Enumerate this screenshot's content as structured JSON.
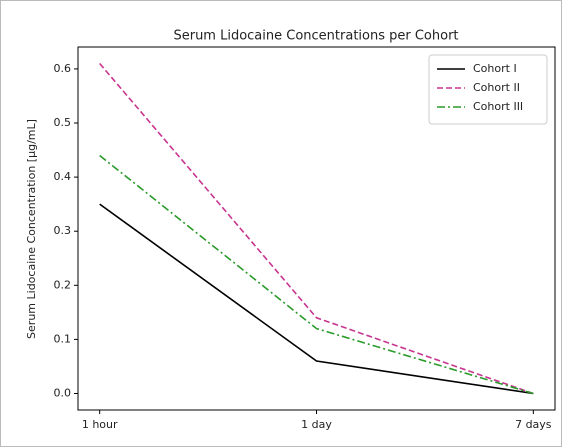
{
  "chart_data": {
    "type": "line",
    "title": "Serum Lidocaine Concentrations per Cohort",
    "y_label": "Serum Lidocaine Concentration [μg/mL]",
    "categories": [
      "1 hour",
      "1 day",
      "7 days"
    ],
    "series": [
      {
        "name": "Cohort I",
        "color": "#000000",
        "linestyle": "solid",
        "values": [
          0.35,
          0.06,
          0.0
        ]
      },
      {
        "name": "Cohort II",
        "color": "#c8358f",
        "linestyle": "dashed",
        "values": [
          0.61,
          0.14,
          0.0
        ]
      },
      {
        "name": "Cohort III",
        "color": "#2a9a2a",
        "linestyle": "dashdot",
        "values": [
          0.44,
          0.12,
          0.0
        ]
      }
    ],
    "ylim": [
      -0.0305,
      0.6405
    ],
    "yticks": [
      {
        "value": 0,
        "label": "0.0"
      },
      0.1,
      0.2,
      0.3,
      0.4,
      0.5,
      0.6
    ],
    "legend": "upper right",
    "grid": false
  }
}
